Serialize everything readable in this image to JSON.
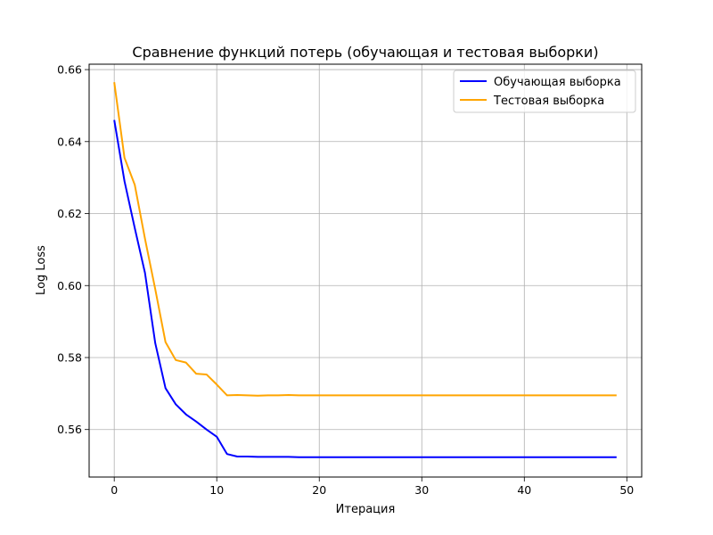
{
  "chart_data": {
    "type": "line",
    "title": "Сравнение функций потерь (обучающая и тестовая выборки)",
    "xlabel": "Итерация",
    "ylabel": "Log Loss",
    "xlim": [
      -2.45,
      51.45
    ],
    "ylim": [
      0.5468,
      0.6615
    ],
    "xticks": [
      0,
      10,
      20,
      30,
      40,
      50
    ],
    "yticks": [
      0.56,
      0.58,
      0.6,
      0.62,
      0.64,
      0.66
    ],
    "xtick_labels": [
      "0",
      "10",
      "20",
      "30",
      "40",
      "50"
    ],
    "ytick_labels": [
      "0.56",
      "0.58",
      "0.60",
      "0.62",
      "0.64",
      "0.66"
    ],
    "grid": true,
    "legend_position": "top-right",
    "series": [
      {
        "name": "Обучающая выборка",
        "color": "#0000ff",
        "x": [
          0,
          1,
          2,
          3,
          4,
          5,
          6,
          7,
          8,
          9,
          10,
          11,
          12,
          13,
          14,
          15,
          16,
          17,
          18,
          19,
          20,
          21,
          22,
          23,
          24,
          25,
          26,
          27,
          28,
          29,
          30,
          31,
          32,
          33,
          34,
          35,
          36,
          37,
          38,
          39,
          40,
          41,
          42,
          43,
          44,
          45,
          46,
          47,
          48,
          49
        ],
        "values": [
          0.646,
          0.629,
          0.616,
          0.6035,
          0.584,
          0.5715,
          0.567,
          0.5642,
          0.5622,
          0.56,
          0.558,
          0.5532,
          0.5525,
          0.5525,
          0.5524,
          0.5524,
          0.5524,
          0.5524,
          0.5523,
          0.5523,
          0.5523,
          0.5523,
          0.5523,
          0.5523,
          0.5523,
          0.5523,
          0.5523,
          0.5523,
          0.5523,
          0.5523,
          0.5523,
          0.5523,
          0.5523,
          0.5523,
          0.5523,
          0.5523,
          0.5523,
          0.5523,
          0.5523,
          0.5523,
          0.5523,
          0.5523,
          0.5523,
          0.5523,
          0.5523,
          0.5523,
          0.5523,
          0.5523,
          0.5523,
          0.5523
        ]
      },
      {
        "name": "Тестовая выборка",
        "color": "#ffa500",
        "x": [
          0,
          1,
          2,
          3,
          4,
          5,
          6,
          7,
          8,
          9,
          10,
          11,
          12,
          13,
          14,
          15,
          16,
          17,
          18,
          19,
          20,
          21,
          22,
          23,
          24,
          25,
          26,
          27,
          28,
          29,
          30,
          31,
          32,
          33,
          34,
          35,
          36,
          37,
          38,
          39,
          40,
          41,
          42,
          43,
          44,
          45,
          46,
          47,
          48,
          49
        ],
        "values": [
          0.6565,
          0.6355,
          0.628,
          0.613,
          0.599,
          0.5843,
          0.5793,
          0.5786,
          0.5755,
          0.5753,
          0.5725,
          0.5695,
          0.5696,
          0.5695,
          0.5694,
          0.5695,
          0.5695,
          0.5696,
          0.5695,
          0.5695,
          0.5695,
          0.5695,
          0.5695,
          0.5695,
          0.5695,
          0.5695,
          0.5695,
          0.5695,
          0.5695,
          0.5695,
          0.5695,
          0.5695,
          0.5695,
          0.5695,
          0.5695,
          0.5695,
          0.5695,
          0.5695,
          0.5695,
          0.5695,
          0.5695,
          0.5695,
          0.5695,
          0.5695,
          0.5695,
          0.5695,
          0.5695,
          0.5695,
          0.5695,
          0.5695
        ]
      }
    ]
  }
}
